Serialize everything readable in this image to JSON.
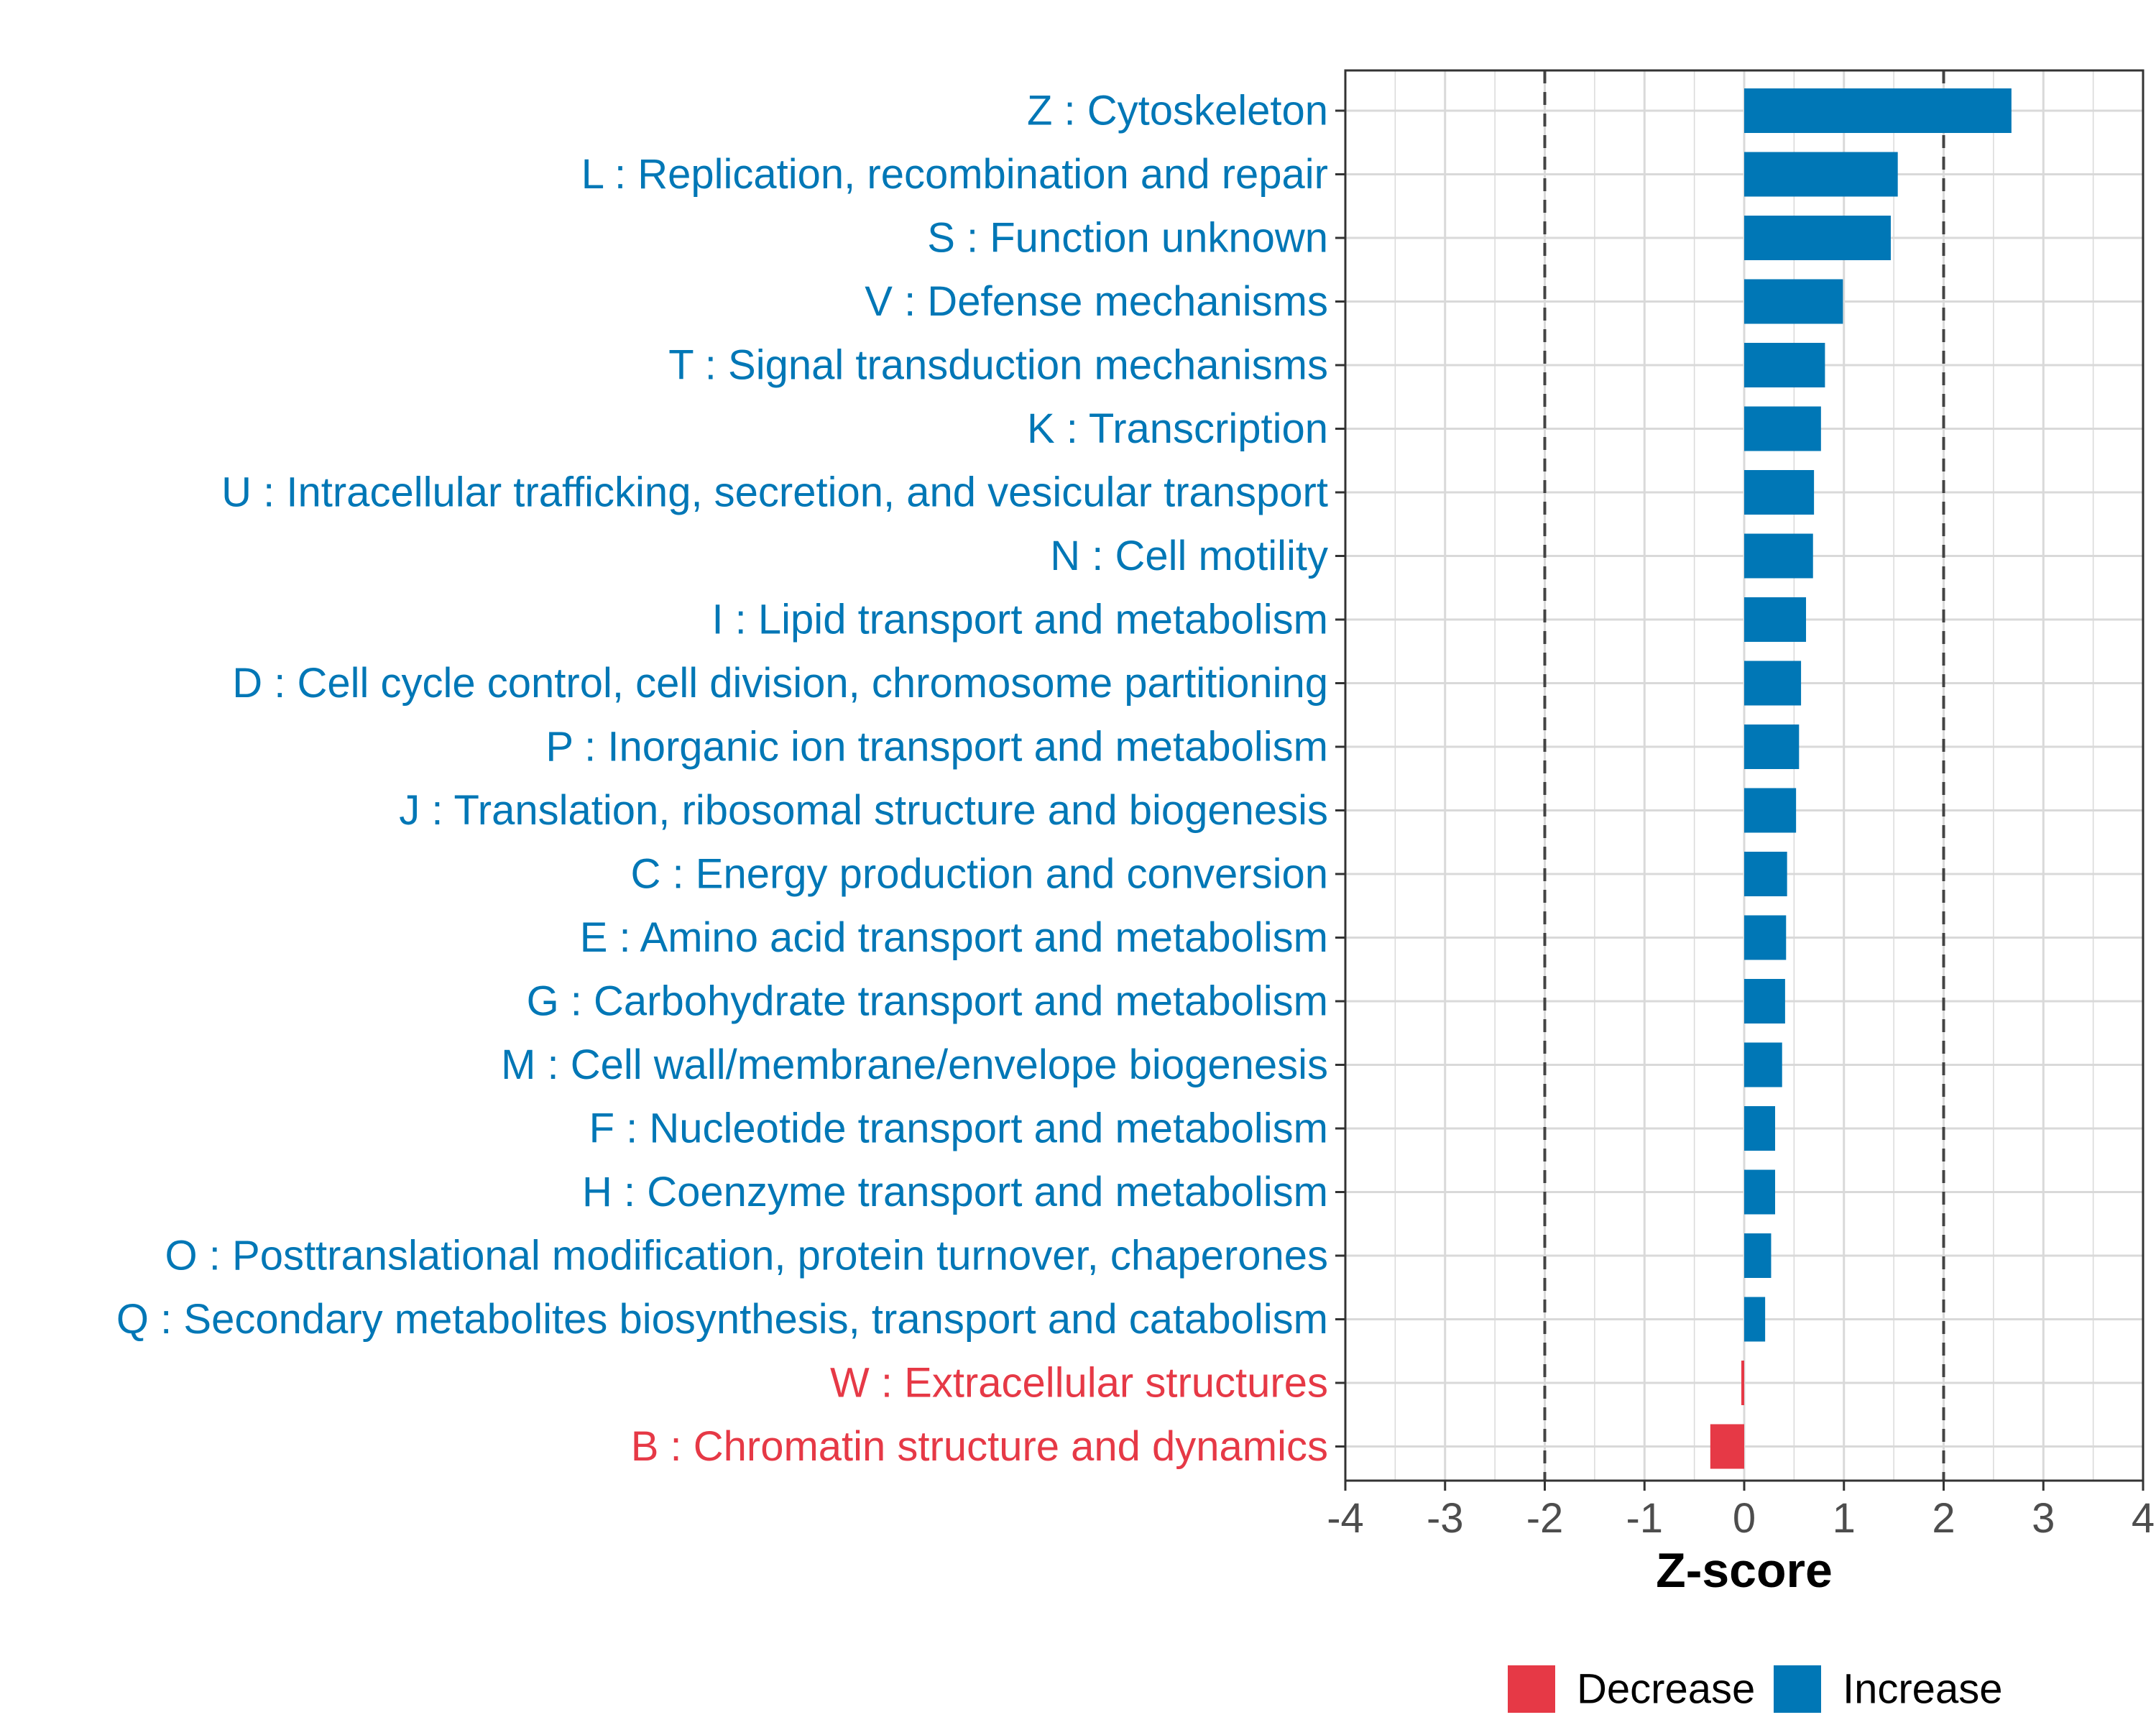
{
  "chart_data": {
    "type": "bar",
    "orientation": "horizontal",
    "title": "",
    "xlabel": "Z-score",
    "ylabel": "",
    "xlim": [
      -4,
      4
    ],
    "xticks": [
      "-4",
      "-3",
      "-2",
      "-1",
      "0",
      "1",
      "2",
      "3",
      "4"
    ],
    "reference_lines": [
      -2,
      2
    ],
    "grid": true,
    "legend_position": "bottom",
    "categories": [
      "Z : Cytoskeleton",
      "L : Replication, recombination and repair",
      "S : Function unknown",
      "V : Defense mechanisms",
      "T : Signal transduction mechanisms",
      "K : Transcription",
      "U : Intracellular trafficking, secretion, and vesicular transport",
      "N : Cell motility",
      "I : Lipid transport and metabolism",
      "D : Cell cycle control, cell division, chromosome partitioning",
      "P : Inorganic ion transport and metabolism",
      "J : Translation, ribosomal structure and biogenesis",
      "C : Energy production and conversion",
      "E : Amino acid transport and metabolism",
      "G : Carbohydrate transport and metabolism",
      "M : Cell wall/membrane/envelope biogenesis",
      "F : Nucleotide transport and metabolism",
      "H : Coenzyme transport and metabolism",
      "O : Posttranslational modification, protein turnover, chaperones",
      "Q : Secondary metabolites biosynthesis, transport and catabolism",
      "W : Extracellular structures",
      "B : Chromatin structure and dynamics"
    ],
    "values": [
      2.68,
      1.54,
      1.47,
      0.99,
      0.81,
      0.77,
      0.7,
      0.69,
      0.62,
      0.57,
      0.55,
      0.52,
      0.43,
      0.42,
      0.41,
      0.38,
      0.31,
      0.31,
      0.27,
      0.21,
      -0.02,
      -0.34
    ],
    "groups": [
      "Increase",
      "Increase",
      "Increase",
      "Increase",
      "Increase",
      "Increase",
      "Increase",
      "Increase",
      "Increase",
      "Increase",
      "Increase",
      "Increase",
      "Increase",
      "Increase",
      "Increase",
      "Increase",
      "Increase",
      "Increase",
      "Increase",
      "Increase",
      "Decrease",
      "Decrease"
    ],
    "legend": [
      {
        "name": "Decrease",
        "color": "#e63946"
      },
      {
        "name": "Increase",
        "color": "#0077b6"
      }
    ]
  }
}
